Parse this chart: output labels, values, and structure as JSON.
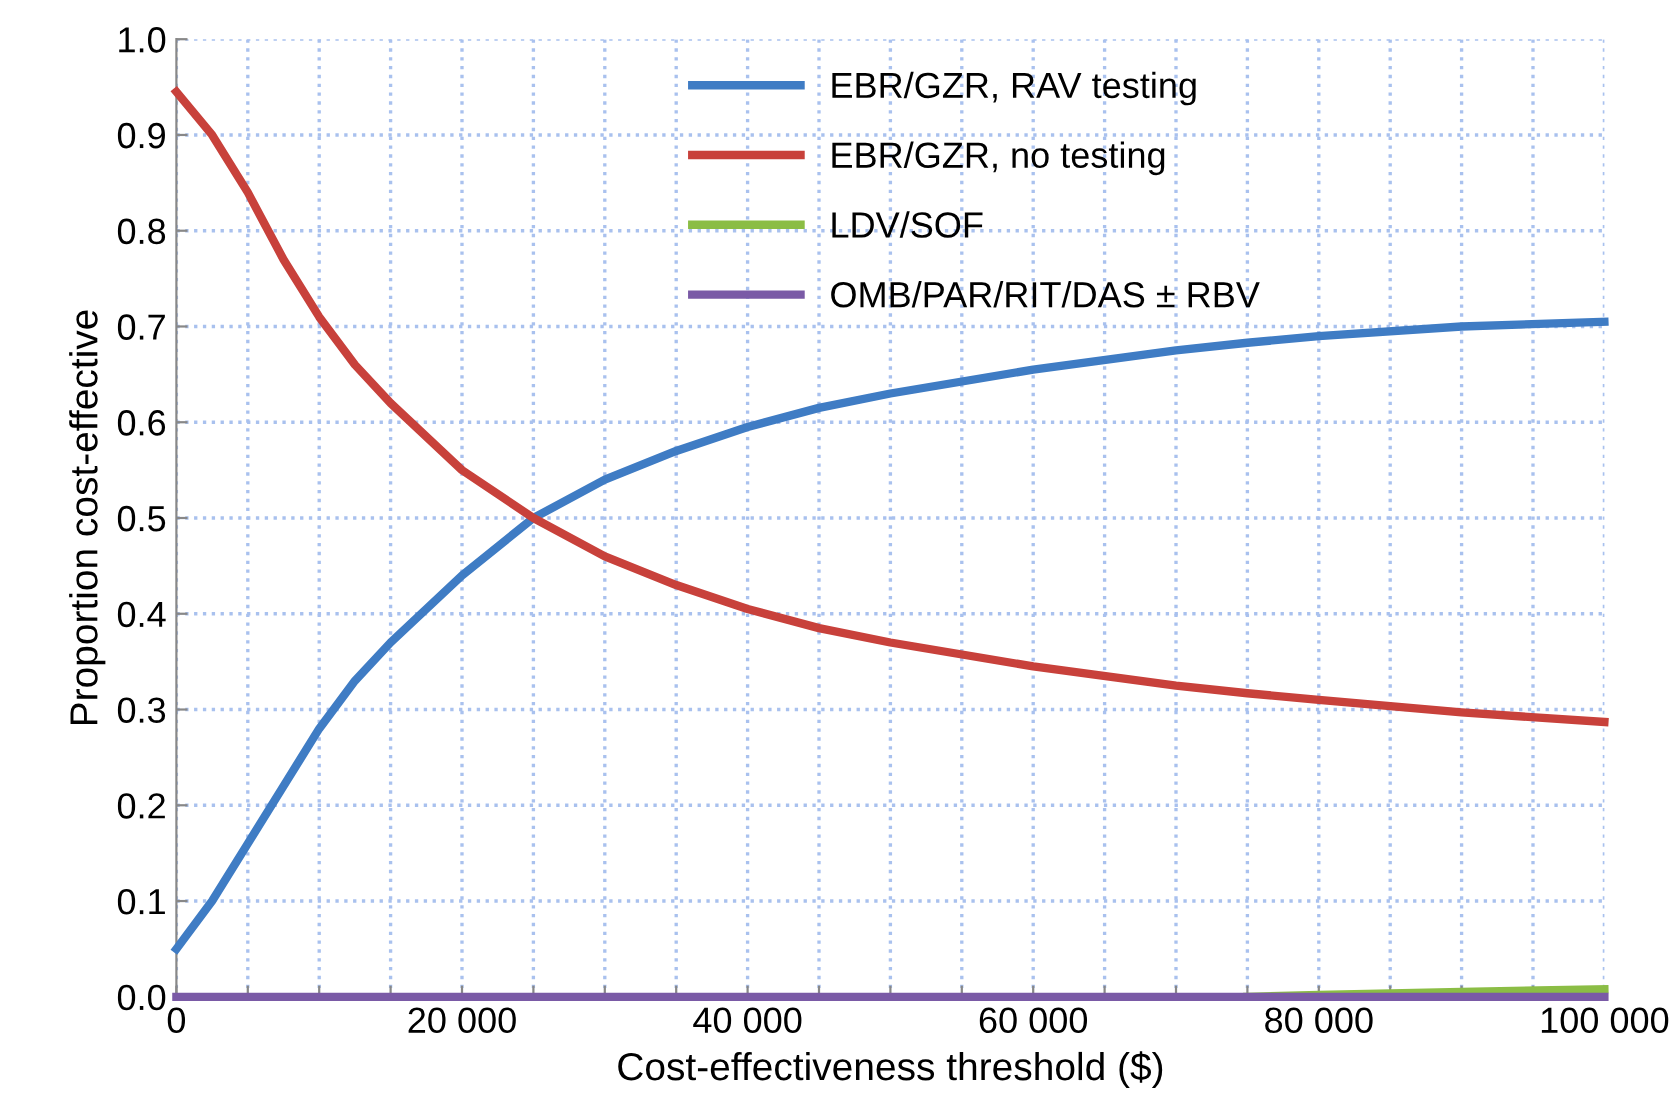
{
  "chart_data": {
    "type": "line",
    "xlabel": "Cost-effectiveness threshold ($)",
    "ylabel": "Proportion cost-effective",
    "xlim": [
      0,
      100000
    ],
    "ylim": [
      0,
      1.0
    ],
    "xticks": [
      {
        "value": 0,
        "label": "0"
      },
      {
        "value": 5000,
        "label": null
      },
      {
        "value": 10000,
        "label": null
      },
      {
        "value": 15000,
        "label": null
      },
      {
        "value": 20000,
        "label": "20 000"
      },
      {
        "value": 25000,
        "label": null
      },
      {
        "value": 30000,
        "label": null
      },
      {
        "value": 35000,
        "label": null
      },
      {
        "value": 40000,
        "label": "40 000"
      },
      {
        "value": 45000,
        "label": null
      },
      {
        "value": 50000,
        "label": null
      },
      {
        "value": 55000,
        "label": null
      },
      {
        "value": 60000,
        "label": "60 000"
      },
      {
        "value": 65000,
        "label": null
      },
      {
        "value": 70000,
        "label": null
      },
      {
        "value": 75000,
        "label": null
      },
      {
        "value": 80000,
        "label": "80 000"
      },
      {
        "value": 85000,
        "label": null
      },
      {
        "value": 90000,
        "label": null
      },
      {
        "value": 95000,
        "label": null
      },
      {
        "value": 100000,
        "label": "100 000"
      }
    ],
    "yticks": [
      {
        "value": 0,
        "label": "0.0"
      },
      0.1,
      0.2,
      0.3,
      0.4,
      0.5,
      0.6,
      0.7,
      0.8,
      0.9,
      {
        "value": 1.0,
        "label": "1.0"
      }
    ],
    "grid": true,
    "legend": "top",
    "line_style": "solid",
    "marker": "none",
    "x": [
      0,
      2500,
      5000,
      7500,
      10000,
      12500,
      15000,
      20000,
      25000,
      30000,
      35000,
      40000,
      45000,
      50000,
      60000,
      70000,
      75000,
      80000,
      90000,
      100000
    ],
    "series": [
      {
        "name": "EBR/GZR, RAV testing",
        "color": "#3f7cc4",
        "values": [
          0.05,
          0.1,
          0.16,
          0.22,
          0.28,
          0.33,
          0.37,
          0.44,
          0.5,
          0.54,
          0.57,
          0.595,
          0.615,
          0.63,
          0.655,
          0.675,
          0.683,
          0.69,
          0.7,
          0.705
        ]
      },
      {
        "name": "EBR/GZR, no testing",
        "color": "#c8413b",
        "values": [
          0.945,
          0.9,
          0.84,
          0.77,
          0.71,
          0.66,
          0.62,
          0.55,
          0.5,
          0.46,
          0.43,
          0.405,
          0.385,
          0.37,
          0.345,
          0.325,
          0.317,
          0.31,
          0.297,
          0.287
        ]
      },
      {
        "name": "LDV/SOF",
        "color": "#8bbd45",
        "values": [
          null,
          null,
          null,
          null,
          null,
          null,
          null,
          null,
          null,
          null,
          null,
          null,
          null,
          null,
          null,
          null,
          0,
          0.002,
          0.005,
          0.008
        ]
      },
      {
        "name": "OMB/PAR/RIT/DAS ± RBV",
        "color": "#7a5aa6",
        "values": [
          0,
          0,
          0,
          0,
          0,
          0,
          0,
          0,
          0,
          0,
          0,
          0,
          0,
          0,
          0,
          0,
          0,
          0,
          0,
          0
        ]
      }
    ]
  }
}
